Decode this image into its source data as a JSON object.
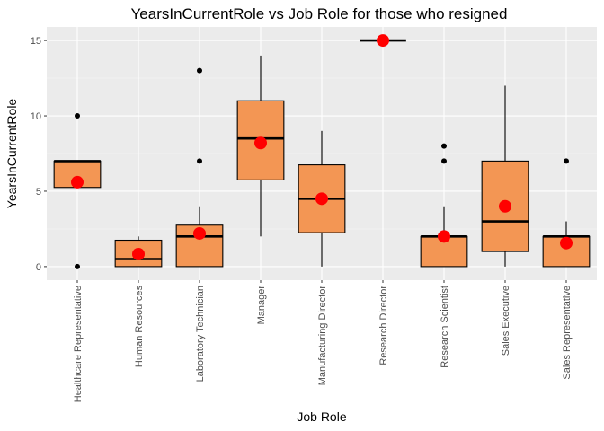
{
  "chart_data": {
    "type": "boxplot",
    "title": "YearsInCurrentRole vs Job Role for those who resigned",
    "xlabel": "Job Role",
    "ylabel": "YearsInCurrentRole",
    "ylim": [
      -0.9,
      15.9
    ],
    "yticks": [
      0,
      5,
      10,
      15
    ],
    "grid": true,
    "colors": {
      "panel": "#ebebeb",
      "grid_major": "#ffffff",
      "box_fill": "#f39654",
      "box_stroke": "#000000",
      "outlier": "#000000",
      "mean_point": "#ff0000",
      "tick_text": "#4d4d4d"
    },
    "categories": [
      "Healthcare Representative",
      "Human Resources",
      "Laboratory Technician",
      "Manager",
      "Manufacturing Director",
      "Research Director",
      "Research Scientist",
      "Sales Executive",
      "Sales Representative"
    ],
    "boxes": [
      {
        "q1": 5.25,
        "median": 7,
        "q3": 7,
        "whisker_low": 5.25,
        "whisker_high": 7,
        "outliers": [
          0,
          10
        ],
        "mean": 5.6
      },
      {
        "q1": 0,
        "median": 0.5,
        "q3": 1.75,
        "whisker_low": 0,
        "whisker_high": 2,
        "outliers": [],
        "mean": 0.83
      },
      {
        "q1": 0,
        "median": 2,
        "q3": 2.75,
        "whisker_low": 0,
        "whisker_high": 4,
        "outliers": [
          7,
          13
        ],
        "mean": 2.2
      },
      {
        "q1": 5.75,
        "median": 8.5,
        "q3": 11,
        "whisker_low": 2,
        "whisker_high": 14,
        "outliers": [],
        "mean": 8.2
      },
      {
        "q1": 2.25,
        "median": 4.5,
        "q3": 6.75,
        "whisker_low": 0,
        "whisker_high": 9,
        "outliers": [],
        "mean": 4.5
      },
      {
        "q1": 15,
        "median": 15,
        "q3": 15,
        "whisker_low": 15,
        "whisker_high": 15,
        "outliers": [],
        "mean": 15
      },
      {
        "q1": 0,
        "median": 2,
        "q3": 2,
        "whisker_low": 0,
        "whisker_high": 4,
        "outliers": [
          7,
          8
        ],
        "mean": 2.0
      },
      {
        "q1": 1,
        "median": 3,
        "q3": 7,
        "whisker_low": 0,
        "whisker_high": 12,
        "outliers": [],
        "mean": 4.0
      },
      {
        "q1": 0,
        "median": 2,
        "q3": 2,
        "whisker_low": 0,
        "whisker_high": 3,
        "outliers": [
          7
        ],
        "mean": 1.56
      }
    ]
  }
}
